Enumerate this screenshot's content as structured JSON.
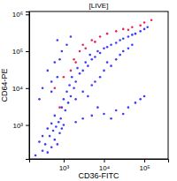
{
  "chart_data": {
    "type": "scatter",
    "title": "[LIVE]",
    "x_label": "CD36-FITC",
    "y_label": "CD64-PE",
    "log": true,
    "xlim": [
      140,
      390000
    ],
    "ylim": [
      120,
      1200000
    ],
    "xticks": [
      {
        "value": 1000,
        "label": "10³"
      },
      {
        "value": 10000,
        "label": "10⁴"
      },
      {
        "value": 100000,
        "label": "10⁵"
      }
    ],
    "yticks": [
      {
        "value": 1000,
        "label": "10³"
      },
      {
        "value": 10000,
        "label": "10⁴"
      },
      {
        "value": 100000,
        "label": "10⁵"
      },
      {
        "value": 1000000,
        "label": "10⁶"
      }
    ],
    "series": [
      {
        "color": "#1a1aff",
        "x": [
          200,
          300,
          400,
          500,
          350,
          600,
          250,
          450,
          700,
          800,
          550,
          300,
          650,
          900,
          400,
          750,
          500,
          1000,
          850,
          600,
          1100,
          900,
          1300,
          1000,
          1500,
          1200,
          1800,
          1400,
          2000,
          1600,
          2500,
          3000,
          2200,
          4000,
          3500,
          5000,
          6000,
          4500,
          8000,
          7000,
          10000,
          12000,
          15000,
          20000,
          25000,
          30000,
          40000,
          50000,
          60000,
          80000,
          100000,
          120000,
          300,
          500,
          700,
          400,
          600,
          800,
          900,
          1200,
          700,
          1500,
          500,
          250,
          2000,
          3000,
          5000,
          4000,
          8000,
          6000,
          10000,
          15000,
          20000,
          12000,
          25000,
          30000,
          40000,
          50000,
          10000,
          20000,
          40000,
          60000,
          80000,
          15000,
          30000,
          100000,
          5000,
          3000,
          2000,
          7000
        ],
        "values": [
          150,
          200,
          180,
          250,
          300,
          400,
          350,
          500,
          300,
          600,
          700,
          500,
          900,
          800,
          800,
          1200,
          1100,
          1000,
          1500,
          1800,
          2500,
          3000,
          4000,
          5000,
          6000,
          8000,
          10000,
          12000,
          15000,
          20000,
          25000,
          30000,
          35000,
          40000,
          50000,
          60000,
          70000,
          80000,
          90000,
          100000,
          120000,
          130000,
          150000,
          170000,
          200000,
          220000,
          250000,
          280000,
          300000,
          350000,
          400000,
          450000,
          10000,
          15000,
          20000,
          30000,
          50000,
          60000,
          100000,
          150000,
          200000,
          250000,
          8000,
          5000,
          5000,
          8000,
          12000,
          6000,
          20000,
          15000,
          30000,
          40000,
          60000,
          50000,
          80000,
          100000,
          120000,
          150000,
          2000,
          2500,
          3000,
          4000,
          5000,
          1500,
          2000,
          6000,
          1800,
          1500,
          1200,
          3000
        ]
      },
      {
        "color": "#e0003a",
        "x": [
          1500,
          1800,
          2500,
          3000,
          5000,
          8000,
          12000,
          20000,
          30000,
          50000,
          80000,
          100000,
          150000,
          1000,
          2000,
          600,
          800,
          3500,
          6000,
          40000
        ],
        "values": [
          30000,
          60000,
          100000,
          150000,
          200000,
          250000,
          300000,
          350000,
          400000,
          450000,
          500000,
          600000,
          700000,
          20000,
          50000,
          10000,
          3000,
          120000,
          180000,
          380000
        ]
      }
    ]
  }
}
